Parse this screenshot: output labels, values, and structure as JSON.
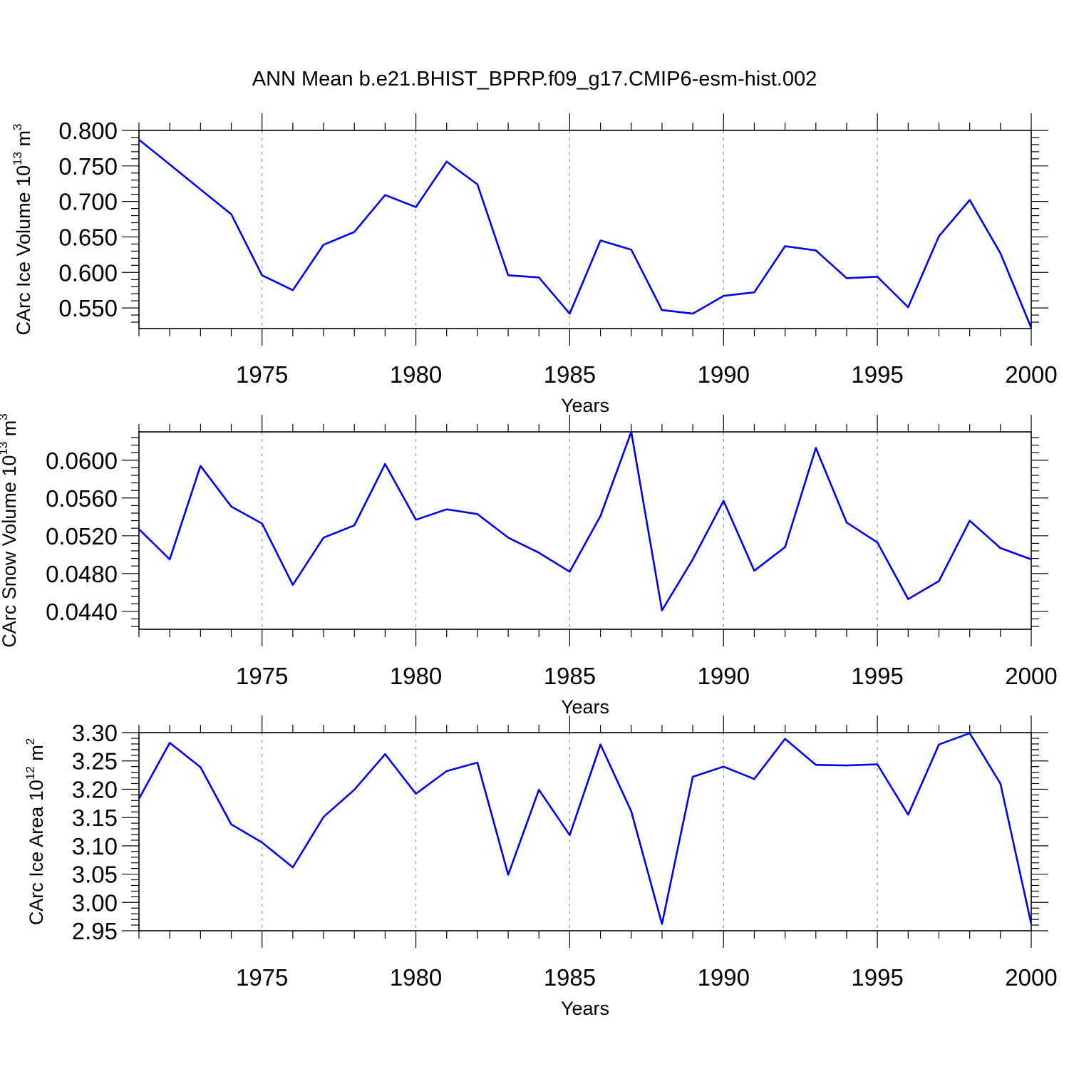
{
  "title": "ANN Mean b.e21.BHIST_BPRP.f09_g17.CMIP6-esm-hist.002",
  "colors": {
    "line": "#0000ee",
    "axis": "#000000",
    "grid": "#9a9a9a"
  },
  "chart_data": [
    {
      "type": "line",
      "xlabel": "Years",
      "ylabel": {
        "main": "CArc Ice Volume 10",
        "exp": "13",
        "unit": " m",
        "unit_exp": "3"
      },
      "xlim": [
        1971,
        2000
      ],
      "ylim": [
        0.521,
        0.8
      ],
      "xticks": [
        1975,
        1980,
        1985,
        1990,
        1995,
        2000
      ],
      "xtick_labels": [
        "1975",
        "1980",
        "1985",
        "1990",
        "1995",
        "2000"
      ],
      "yticks": [
        0.55,
        0.6,
        0.65,
        0.7,
        0.75,
        0.8
      ],
      "ytick_labels": [
        "0.550",
        "0.600",
        "0.650",
        "0.700",
        "0.750",
        "0.800"
      ],
      "x": [
        1971,
        1972,
        1973,
        1974,
        1975,
        1976,
        1977,
        1978,
        1979,
        1980,
        1981,
        1982,
        1983,
        1984,
        1985,
        1986,
        1987,
        1988,
        1989,
        1990,
        1991,
        1992,
        1993,
        1994,
        1995,
        1996,
        1997,
        1998,
        1999,
        2000
      ],
      "y": [
        0.787,
        0.752,
        0.717,
        0.682,
        0.596,
        0.575,
        0.639,
        0.657,
        0.709,
        0.692,
        0.756,
        0.724,
        0.596,
        0.593,
        0.542,
        0.645,
        0.632,
        0.547,
        0.542,
        0.567,
        0.572,
        0.637,
        0.631,
        0.592,
        0.594,
        0.551,
        0.651,
        0.702,
        0.627,
        0.522
      ],
      "grid": "vertical dashed at x ticks"
    },
    {
      "type": "line",
      "xlabel": "Years",
      "ylabel": {
        "main": "CArc Snow Volume 10",
        "exp": "13",
        "unit": " m",
        "unit_exp": "3"
      },
      "xlim": [
        1971,
        2000
      ],
      "ylim": [
        0.0421,
        0.063
      ],
      "xticks": [
        1975,
        1980,
        1985,
        1990,
        1995,
        2000
      ],
      "xtick_labels": [
        "1975",
        "1980",
        "1985",
        "1990",
        "1995",
        "2000"
      ],
      "yticks": [
        0.044,
        0.048,
        0.052,
        0.056,
        0.06
      ],
      "ytick_labels": [
        "0.0440",
        "0.0480",
        "0.0520",
        "0.0560",
        "0.0600"
      ],
      "x": [
        1971,
        1972,
        1973,
        1974,
        1975,
        1976,
        1977,
        1978,
        1979,
        1980,
        1981,
        1982,
        1983,
        1984,
        1985,
        1986,
        1987,
        1988,
        1989,
        1990,
        1991,
        1992,
        1993,
        1994,
        1995,
        1996,
        1997,
        1998,
        1999,
        2000
      ],
      "y": [
        0.0527,
        0.0495,
        0.0594,
        0.0551,
        0.0533,
        0.0468,
        0.0518,
        0.0531,
        0.0596,
        0.0537,
        0.0548,
        0.0543,
        0.0518,
        0.0502,
        0.0482,
        0.0541,
        0.063,
        0.0441,
        0.0495,
        0.0557,
        0.0483,
        0.0508,
        0.0613,
        0.0534,
        0.0513,
        0.0453,
        0.0472,
        0.0536,
        0.0507,
        0.0495
      ],
      "grid": "vertical dashed at x ticks"
    },
    {
      "type": "line",
      "xlabel": "Years",
      "ylabel": {
        "main": "CArc Ice Area 10",
        "exp": "12",
        "unit": " m",
        "unit_exp": "2"
      },
      "xlim": [
        1971,
        2000
      ],
      "ylim": [
        2.95,
        3.3
      ],
      "xticks": [
        1975,
        1980,
        1985,
        1990,
        1995,
        2000
      ],
      "xtick_labels": [
        "1975",
        "1980",
        "1985",
        "1990",
        "1995",
        "2000"
      ],
      "yticks": [
        2.95,
        3.0,
        3.05,
        3.1,
        3.15,
        3.2,
        3.25,
        3.3
      ],
      "ytick_labels": [
        "2.95",
        "3.00",
        "3.05",
        "3.10",
        "3.15",
        "3.20",
        "3.25",
        "3.30"
      ],
      "x": [
        1971,
        1972,
        1973,
        1974,
        1975,
        1976,
        1977,
        1978,
        1979,
        1980,
        1981,
        1982,
        1983,
        1984,
        1985,
        1986,
        1987,
        1988,
        1989,
        1990,
        1991,
        1992,
        1993,
        1994,
        1995,
        1996,
        1997,
        1998,
        1999,
        2000
      ],
      "y": [
        3.183,
        3.282,
        3.239,
        3.138,
        3.106,
        3.062,
        3.151,
        3.199,
        3.262,
        3.192,
        3.232,
        3.247,
        3.049,
        3.199,
        3.119,
        3.279,
        3.161,
        2.962,
        3.222,
        3.24,
        3.218,
        3.289,
        3.243,
        3.242,
        3.244,
        3.155,
        3.279,
        3.299,
        3.21,
        2.962
      ],
      "grid": "vertical dashed at x ticks"
    }
  ]
}
